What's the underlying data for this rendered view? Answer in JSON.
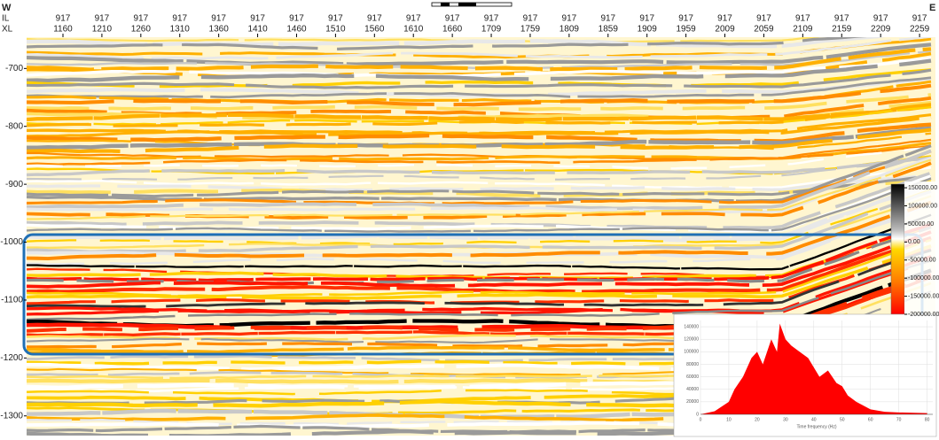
{
  "header": {
    "left": "W",
    "right": "E",
    "il_label": "IL",
    "xl_label": "XL"
  },
  "chart_data": [
    {
      "type": "seismic-section",
      "il": [
        917,
        917,
        917,
        917,
        917,
        917,
        917,
        917,
        917,
        917,
        917,
        917,
        917,
        917,
        917,
        917,
        917,
        917,
        917,
        917,
        917,
        917,
        917
      ],
      "categories": [
        1160,
        1210,
        1260,
        1310,
        1360,
        1410,
        1460,
        1510,
        1560,
        1610,
        1660,
        1709,
        1759,
        1809,
        1859,
        1909,
        1959,
        2009,
        2059,
        2109,
        2159,
        2209,
        2259
      ],
      "ylim": [
        -1334,
        -646
      ],
      "yticks": [
        -700,
        -800,
        -900,
        -1000,
        -1100,
        -1200,
        -1300
      ],
      "colorbar": {
        "lim": [
          -200000,
          160000
        ],
        "ticks": [
          {
            "value": 150000,
            "label": "150000.00"
          },
          {
            "value": 100000,
            "label": "100000.00"
          },
          {
            "value": 50000,
            "label": "50000.00"
          },
          {
            "value": 0,
            "label": "0.00"
          },
          {
            "value": -50000,
            "label": "-50000.00"
          },
          {
            "value": -100000,
            "label": "-100000.00"
          },
          {
            "value": -150000,
            "label": "-150000.00"
          },
          {
            "value": -200000,
            "label": "-200000.00"
          }
        ]
      }
    },
    {
      "type": "area",
      "color": "#ff0000",
      "xlabel": "Time frequency (Hz)",
      "x": [
        0,
        5,
        10,
        12,
        15,
        18,
        20,
        22,
        25,
        27,
        28,
        30,
        32,
        35,
        38,
        40,
        42,
        45,
        48,
        50,
        52,
        55,
        60,
        65,
        70,
        80
      ],
      "values": [
        0,
        5000,
        20000,
        40000,
        60000,
        90000,
        100000,
        80000,
        120000,
        100000,
        145000,
        120000,
        110000,
        100000,
        90000,
        75000,
        60000,
        70000,
        50000,
        45000,
        30000,
        20000,
        8000,
        4000,
        3000,
        2000
      ],
      "xlim": [
        0,
        82
      ],
      "ylim": [
        0,
        150000
      ],
      "xticks": [
        0,
        10,
        20,
        30,
        40,
        50,
        60,
        70,
        80
      ],
      "yticks": [
        0,
        20000,
        40000,
        60000,
        80000,
        100000,
        120000,
        140000
      ]
    }
  ]
}
